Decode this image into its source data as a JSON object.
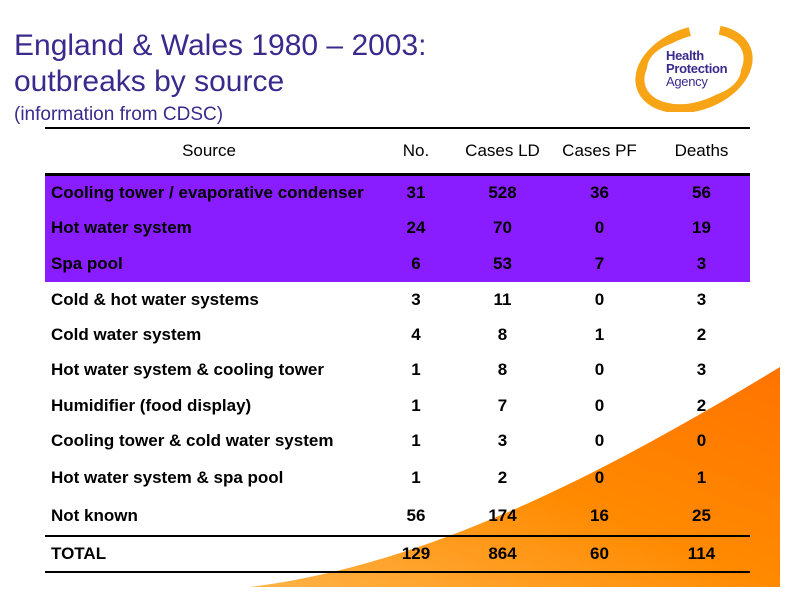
{
  "slide": {
    "title_line1": "England & Wales 1980 – 2003:",
    "title_line2": "outbreaks by source",
    "subtitle": "(information from CDSC)"
  },
  "logo": {
    "line1": "Health",
    "line2": "Protection",
    "line3": "Agency",
    "colors": {
      "ring": "#f7a416",
      "text": "#3b2a8c"
    }
  },
  "colors": {
    "highlight": "#8a1dff",
    "title": "#3b2a8c",
    "swoosh": "#ff8c00"
  },
  "table": {
    "headers": [
      "Source",
      "No.",
      "Cases LD",
      "Cases PF",
      "Deaths"
    ],
    "rows": [
      {
        "source": "Cooling tower / evaporative condenser",
        "no": "31",
        "cases_ld": "528",
        "cases_pf": "36",
        "deaths": "56"
      },
      {
        "source": "Hot water system",
        "no": "24",
        "cases_ld": "70",
        "cases_pf": "0",
        "deaths": "19"
      },
      {
        "source": "Spa pool",
        "no": "6",
        "cases_ld": "53",
        "cases_pf": "7",
        "deaths": "3"
      },
      {
        "source": "Cold & hot water systems",
        "no": "3",
        "cases_ld": "11",
        "cases_pf": "0",
        "deaths": "3"
      },
      {
        "source": "Cold water system",
        "no": "4",
        "cases_ld": "8",
        "cases_pf": "1",
        "deaths": "2"
      },
      {
        "source": "Hot water system & cooling tower",
        "no": "1",
        "cases_ld": "8",
        "cases_pf": "0",
        "deaths": "3"
      },
      {
        "source": "Humidifier (food display)",
        "no": "1",
        "cases_ld": "7",
        "cases_pf": "0",
        "deaths": "2"
      },
      {
        "source": "Cooling tower & cold water system",
        "no": "1",
        "cases_ld": "3",
        "cases_pf": "0",
        "deaths": "0"
      },
      {
        "source": "Hot water system & spa pool",
        "no": "1",
        "cases_ld": "2",
        "cases_pf": "0",
        "deaths": "1"
      },
      {
        "source": "Not known",
        "no": "56",
        "cases_ld": "174",
        "cases_pf": "16",
        "deaths": "25"
      }
    ],
    "total": {
      "label": "TOTAL",
      "no": "129",
      "cases_ld": "864",
      "cases_pf": "60",
      "deaths": "114"
    }
  }
}
